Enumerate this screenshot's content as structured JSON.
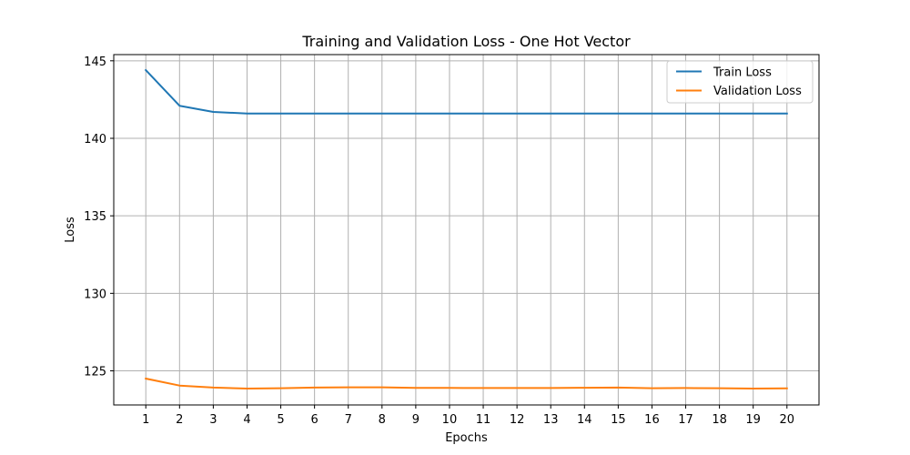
{
  "chart_data": {
    "type": "line",
    "title": "Training and Validation Loss - One Hot Vector",
    "xlabel": "Epochs",
    "ylabel": "Loss",
    "x": [
      1,
      2,
      3,
      4,
      5,
      6,
      7,
      8,
      9,
      10,
      11,
      12,
      13,
      14,
      15,
      16,
      17,
      18,
      19,
      20
    ],
    "yticks": [
      125,
      130,
      135,
      140,
      145
    ],
    "xlim": [
      0.05,
      20.95
    ],
    "ylim": [
      122.8,
      145.4
    ],
    "grid": true,
    "legend_position": "top-right",
    "series": [
      {
        "name": "Train Loss",
        "color": "#1f77b4",
        "values": [
          144.4,
          142.1,
          141.7,
          141.6,
          141.6,
          141.6,
          141.6,
          141.6,
          141.6,
          141.6,
          141.6,
          141.6,
          141.6,
          141.6,
          141.6,
          141.6,
          141.6,
          141.6,
          141.6,
          141.6
        ]
      },
      {
        "name": "Validation Loss",
        "color": "#ff7f0e",
        "values": [
          124.5,
          124.05,
          123.92,
          123.86,
          123.88,
          123.92,
          123.94,
          123.94,
          123.9,
          123.9,
          123.89,
          123.89,
          123.89,
          123.91,
          123.92,
          123.88,
          123.89,
          123.88,
          123.86,
          123.87
        ]
      }
    ]
  }
}
